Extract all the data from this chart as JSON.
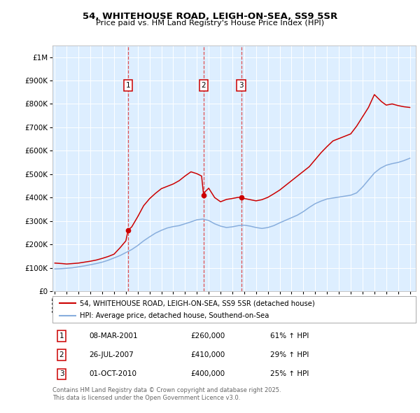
{
  "title": "54, WHITEHOUSE ROAD, LEIGH-ON-SEA, SS9 5SR",
  "subtitle": "Price paid vs. HM Land Registry's House Price Index (HPI)",
  "legend_line1": "54, WHITEHOUSE ROAD, LEIGH-ON-SEA, SS9 5SR (detached house)",
  "legend_line2": "HPI: Average price, detached house, Southend-on-Sea",
  "footer": "Contains HM Land Registry data © Crown copyright and database right 2025.\nThis data is licensed under the Open Government Licence v3.0.",
  "transactions": [
    {
      "num": 1,
      "date": "08-MAR-2001",
      "price": 260000,
      "pct": "61%",
      "dir": "↑",
      "year": 2001.18
    },
    {
      "num": 2,
      "date": "26-JUL-2007",
      "price": 410000,
      "pct": "29%",
      "dir": "↑",
      "year": 2007.57
    },
    {
      "num": 3,
      "date": "01-OCT-2010",
      "price": 400000,
      "pct": "25%",
      "dir": "↑",
      "year": 2010.75
    }
  ],
  "red_line_color": "#cc0000",
  "blue_line_color": "#88aedd",
  "vline_color": "#dd3333",
  "plot_bg": "#ddeeff",
  "ylim": [
    0,
    1050000
  ],
  "xlim_start": 1994.8,
  "xlim_end": 2025.5,
  "red_data_x": [
    1995.0,
    1995.3,
    1995.6,
    1996.0,
    1996.5,
    1997.0,
    1997.5,
    1998.0,
    1998.5,
    1999.0,
    1999.5,
    2000.0,
    2000.5,
    2001.0,
    2001.18,
    2001.5,
    2002.0,
    2002.5,
    2003.0,
    2003.5,
    2004.0,
    2004.5,
    2005.0,
    2005.5,
    2006.0,
    2006.5,
    2007.0,
    2007.4,
    2007.57,
    2007.7,
    2008.0,
    2008.5,
    2009.0,
    2009.5,
    2010.0,
    2010.5,
    2010.75,
    2011.0,
    2011.5,
    2012.0,
    2012.5,
    2013.0,
    2013.5,
    2014.0,
    2014.5,
    2015.0,
    2015.5,
    2016.0,
    2016.5,
    2017.0,
    2017.5,
    2018.0,
    2018.5,
    2019.0,
    2019.5,
    2020.0,
    2020.5,
    2021.0,
    2021.5,
    2022.0,
    2022.3,
    2022.6,
    2023.0,
    2023.5,
    2024.0,
    2024.5,
    2025.0
  ],
  "red_data_y": [
    120000,
    119000,
    118000,
    116000,
    118000,
    120000,
    124000,
    128000,
    133000,
    140000,
    148000,
    158000,
    185000,
    215000,
    260000,
    275000,
    318000,
    365000,
    395000,
    418000,
    438000,
    448000,
    458000,
    472000,
    492000,
    510000,
    502000,
    492000,
    410000,
    425000,
    440000,
    400000,
    382000,
    392000,
    396000,
    401000,
    400000,
    396000,
    391000,
    386000,
    391000,
    401000,
    416000,
    432000,
    452000,
    472000,
    492000,
    512000,
    532000,
    562000,
    592000,
    618000,
    642000,
    652000,
    662000,
    672000,
    705000,
    745000,
    785000,
    840000,
    825000,
    810000,
    795000,
    800000,
    793000,
    788000,
    785000
  ],
  "blue_data_x": [
    1995.0,
    1995.5,
    1996.0,
    1996.5,
    1997.0,
    1997.5,
    1998.0,
    1998.5,
    1999.0,
    1999.5,
    2000.0,
    2000.5,
    2001.0,
    2001.5,
    2002.0,
    2002.5,
    2003.0,
    2003.5,
    2004.0,
    2004.5,
    2005.0,
    2005.5,
    2006.0,
    2006.5,
    2007.0,
    2007.5,
    2008.0,
    2008.5,
    2009.0,
    2009.5,
    2010.0,
    2010.5,
    2011.0,
    2011.5,
    2012.0,
    2012.5,
    2013.0,
    2013.5,
    2014.0,
    2014.5,
    2015.0,
    2015.5,
    2016.0,
    2016.5,
    2017.0,
    2017.5,
    2018.0,
    2018.5,
    2019.0,
    2019.5,
    2020.0,
    2020.5,
    2021.0,
    2021.5,
    2022.0,
    2022.5,
    2023.0,
    2023.5,
    2024.0,
    2024.5,
    2025.0
  ],
  "blue_data_y": [
    95000,
    96000,
    98000,
    100000,
    104000,
    108000,
    113000,
    118000,
    124000,
    132000,
    142000,
    152000,
    165000,
    178000,
    195000,
    215000,
    232000,
    248000,
    260000,
    270000,
    276000,
    280000,
    288000,
    296000,
    305000,
    308000,
    302000,
    288000,
    278000,
    272000,
    275000,
    280000,
    282000,
    278000,
    272000,
    268000,
    272000,
    280000,
    292000,
    303000,
    314000,
    325000,
    340000,
    358000,
    374000,
    385000,
    394000,
    398000,
    402000,
    406000,
    410000,
    420000,
    445000,
    475000,
    505000,
    525000,
    538000,
    545000,
    550000,
    558000,
    568000
  ]
}
